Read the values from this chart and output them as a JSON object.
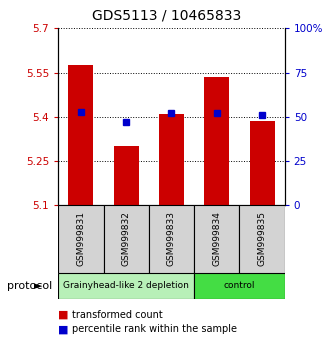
{
  "title": "GDS5113 / 10465833",
  "samples": [
    "GSM999831",
    "GSM999832",
    "GSM999833",
    "GSM999834",
    "GSM999835"
  ],
  "bar_values": [
    5.575,
    5.3,
    5.41,
    5.535,
    5.385
  ],
  "percentile_values": [
    53,
    47,
    52,
    52,
    51
  ],
  "bar_color": "#cc0000",
  "percentile_color": "#0000cc",
  "ylim_left": [
    5.1,
    5.7
  ],
  "ylim_right": [
    0,
    100
  ],
  "yticks_left": [
    5.1,
    5.25,
    5.4,
    5.55,
    5.7
  ],
  "ytick_labels_left": [
    "5.1",
    "5.25",
    "5.4",
    "5.55",
    "5.7"
  ],
  "yticks_right": [
    0,
    25,
    50,
    75,
    100
  ],
  "ytick_labels_right": [
    "0",
    "25",
    "50",
    "75",
    "100%"
  ],
  "groups": [
    {
      "label": "Grainyhead-like 2 depletion",
      "color": "#b8f0b8",
      "samples": [
        0,
        1,
        2
      ]
    },
    {
      "label": "control",
      "color": "#44dd44",
      "samples": [
        3,
        4
      ]
    }
  ],
  "protocol_label": "protocol",
  "legend_items": [
    {
      "label": "transformed count",
      "color": "#cc0000"
    },
    {
      "label": "percentile rank within the sample",
      "color": "#0000cc"
    }
  ],
  "bar_width": 0.55,
  "background_color": "#ffffff"
}
